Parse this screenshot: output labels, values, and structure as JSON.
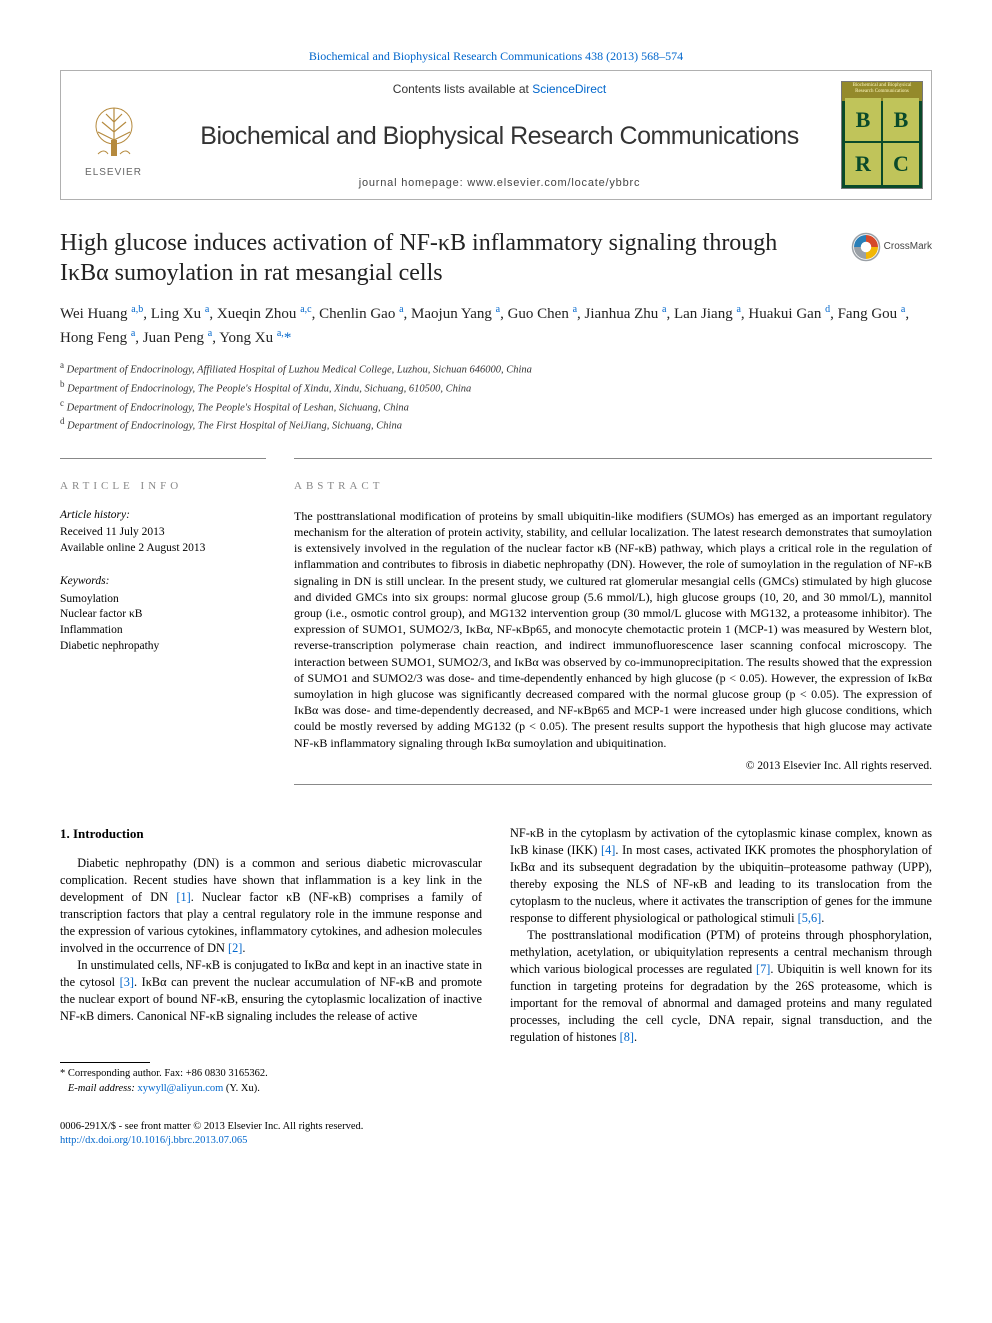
{
  "top_citation_link": "Biochemical and Biophysical Research Communications 438 (2013) 568–574",
  "header": {
    "contents_prefix": "Contents lists available at ",
    "contents_link": "ScienceDirect",
    "journal_name": "Biochemical and Biophysical Research Communications",
    "homepage_prefix": "journal homepage: ",
    "homepage_url": "www.elsevier.com/locate/ybbrc",
    "elsevier_label": "ELSEVIER",
    "cover_label": "Biochemical and Biophysical Research Communications",
    "cover_letters": [
      "B",
      "B",
      "R",
      "C"
    ]
  },
  "crossmark_label": "CrossMark",
  "title": "High glucose induces activation of NF-κB inflammatory signaling through IκBα sumoylation in rat mesangial cells",
  "authors_html": "Wei Huang <sup>a,b</sup>, Ling Xu <sup>a</sup>, Xueqin Zhou <sup>a,c</sup>, Chenlin Gao <sup>a</sup>, Maojun Yang <sup>a</sup>, Guo Chen <sup>a</sup>, Jianhua Zhu <sup>a</sup>, Lan Jiang <sup>a</sup>, Huakui Gan <sup>d</sup>, Fang Gou <sup>a</sup>, Hong Feng <sup>a</sup>, Juan Peng <sup>a</sup>, Yong Xu <sup>a,</sup><span class='ast'>*</span>",
  "affiliations": [
    {
      "sup": "a",
      "text": "Department of Endocrinology, Affiliated Hospital of Luzhou Medical College, Luzhou, Sichuan 646000, China"
    },
    {
      "sup": "b",
      "text": "Department of Endocrinology, The People's Hospital of Xindu, Xindu, Sichuang, 610500, China"
    },
    {
      "sup": "c",
      "text": "Department of Endocrinology, The People's Hospital of Leshan, Sichuang, China"
    },
    {
      "sup": "d",
      "text": "Department of Endocrinology, The First Hospital of NeiJiang, Sichuang, China"
    }
  ],
  "article_info": {
    "label": "article info",
    "history_label": "Article history:",
    "received": "Received 11 July 2013",
    "online": "Available online 2 August 2013",
    "keywords_label": "Keywords:",
    "keywords": [
      "Sumoylation",
      "Nuclear factor κB",
      "Inflammation",
      "Diabetic nephropathy"
    ]
  },
  "abstract": {
    "label": "abstract",
    "text": "The posttranslational modification of proteins by small ubiquitin-like modifiers (SUMOs) has emerged as an important regulatory mechanism for the alteration of protein activity, stability, and cellular localization. The latest research demonstrates that sumoylation is extensively involved in the regulation of the nuclear factor κB (NF-κB) pathway, which plays a critical role in the regulation of inflammation and contributes to fibrosis in diabetic nephropathy (DN). However, the role of sumoylation in the regulation of NF-κB signaling in DN is still unclear. In the present study, we cultured rat glomerular mesangial cells (GMCs) stimulated by high glucose and divided GMCs into six groups: normal glucose group (5.6 mmol/L), high glucose groups (10, 20, and 30 mmol/L), mannitol group (i.e., osmotic control group), and MG132 intervention group (30 mmol/L glucose with MG132, a proteasome inhibitor). The expression of SUMO1, SUMO2/3, IκBα, NF-κBp65, and monocyte chemotactic protein 1 (MCP-1) was measured by Western blot, reverse-transcription polymerase chain reaction, and indirect immunofluorescence laser scanning confocal microscopy. The interaction between SUMO1, SUMO2/3, and IκBα was observed by co-immunoprecipitation. The results showed that the expression of SUMO1 and SUMO2/3 was dose- and time-dependently enhanced by high glucose (p < 0.05). However, the expression of IκBα sumoylation in high glucose was significantly decreased compared with the normal glucose group (p < 0.05). The expression of IκBα was dose- and time-dependently decreased, and NF-κBp65 and MCP-1 were increased under high glucose conditions, which could be mostly reversed by adding MG132 (p < 0.05). The present results support the hypothesis that high glucose may activate NF-κB inflammatory signaling through IκBα sumoylation and ubiquitination.",
    "copyright": "© 2013 Elsevier Inc. All rights reserved."
  },
  "sections": {
    "intro_heading": "1. Introduction",
    "col1_p1": "Diabetic nephropathy (DN) is a common and serious diabetic microvascular complication. Recent studies have shown that inflammation is a key link in the development of DN ",
    "col1_p1_ref1": "[1]",
    "col1_p1b": ". Nuclear factor κB (NF-κB) comprises a family of transcription factors that play a central regulatory role in the immune response and the expression of various cytokines, inflammatory cytokines, and adhesion molecules involved in the occurrence of DN ",
    "col1_p1_ref2": "[2]",
    "col1_p1c": ".",
    "col1_p2a": "In unstimulated cells, NF-κB is conjugated to IκBα and kept in an inactive state in the cytosol ",
    "col1_p2_ref3": "[3]",
    "col1_p2b": ". IκBα can prevent the nuclear accumulation of NF-κB and promote the nuclear export of bound NF-κB, ensuring the cytoplasmic localization of inactive NF-κB dimers. Canonical NF-κB signaling includes the release of active",
    "col2_p1a": "NF-κB in the cytoplasm by activation of the cytoplasmic kinase complex, known as IκB kinase (IKK) ",
    "col2_p1_ref4": "[4]",
    "col2_p1b": ". In most cases, activated IKK promotes the phosphorylation of IκBα and its subsequent degradation by the ubiquitin–proteasome pathway (UPP), thereby exposing the NLS of NF-κB and leading to its translocation from the cytoplasm to the nucleus, where it activates the transcription of genes for the immune response to different physiological or pathological stimuli ",
    "col2_p1_ref56": "[5,6]",
    "col2_p1c": ".",
    "col2_p2a": "The posttranslational modification (PTM) of proteins through phosphorylation, methylation, acetylation, or ubiquitylation represents a central mechanism through which various biological processes are regulated ",
    "col2_p2_ref7": "[7]",
    "col2_p2b": ". Ubiquitin is well known for its function in targeting proteins for degradation by the 26S proteasome, which is important for the removal of abnormal and damaged proteins and many regulated processes, including the cell cycle, DNA repair, signal transduction, and the regulation of histones ",
    "col2_p2_ref8": "[8]",
    "col2_p2c": "."
  },
  "footnote": {
    "corr": "* Corresponding author. Fax: +86 0830 3165362.",
    "email_label": "E-mail address: ",
    "email": "xywyll@aliyun.com",
    "email_suffix": " (Y. Xu)."
  },
  "footer": {
    "line1": "0006-291X/$ - see front matter © 2013 Elsevier Inc. All rights reserved.",
    "doi": "http://dx.doi.org/10.1016/j.bbrc.2013.07.065"
  },
  "colors": {
    "link": "#0066cc",
    "rule": "#888888",
    "cover_green": "#0a4a2a",
    "cover_olive": "#948a2b",
    "cover_cell": "#c0c45a",
    "crossmark_red": "#d6492a",
    "crossmark_yellow": "#f2b705",
    "crossmark_blue": "#2a7fb8",
    "crossmark_gray": "#9aa0a6"
  }
}
